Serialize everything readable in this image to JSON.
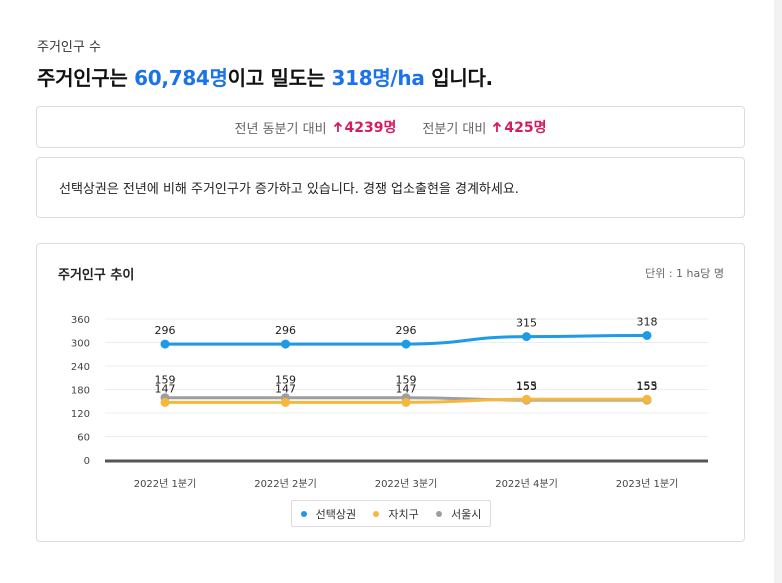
{
  "header": {
    "subtitle": "주거인구 수",
    "headline_pre": "주거인구는 ",
    "population": "60,784명",
    "headline_mid": "이고 밀도는 ",
    "density": "318명/ha",
    "headline_post": " 입니다."
  },
  "compare": {
    "yoy_label": "전년 동분기 대비",
    "yoy_value": "4239명",
    "qoq_label": "전분기 대비",
    "qoq_value": "425명",
    "arrow_icon": "arrow-up-icon"
  },
  "message": "선택상권은 전년에 비해 주거인구가 증가하고 있습니다. 경쟁 업소출현을 경계하세요.",
  "chart_card": {
    "title": "주거인구 추이",
    "unit": "단위 : 1 ha당 명"
  },
  "colors": {
    "accent": "#1a73e8",
    "delta": "#d81b60",
    "series_selected": "#1e9be6",
    "series_district": "#f6b73c",
    "series_seoul": "#9e9e9e"
  },
  "chart_data": {
    "type": "line",
    "categories": [
      "2022년 1분기",
      "2022년 2분기",
      "2022년 3분기",
      "2022년 4분기",
      "2023년 1분기"
    ],
    "yticks": [
      0,
      60,
      120,
      180,
      240,
      300,
      360
    ],
    "ylim": [
      0,
      360
    ],
    "grid": true,
    "legend_position": "bottom",
    "series": [
      {
        "name": "선택상권",
        "values": [
          296,
          296,
          296,
          315,
          318
        ],
        "color": "#1e9be6"
      },
      {
        "name": "자치구",
        "values": [
          147,
          147,
          147,
          155,
          155
        ],
        "color": "#f6b73c"
      },
      {
        "name": "서울시",
        "values": [
          159,
          159,
          159,
          153,
          153
        ],
        "color": "#9e9e9e"
      }
    ]
  }
}
